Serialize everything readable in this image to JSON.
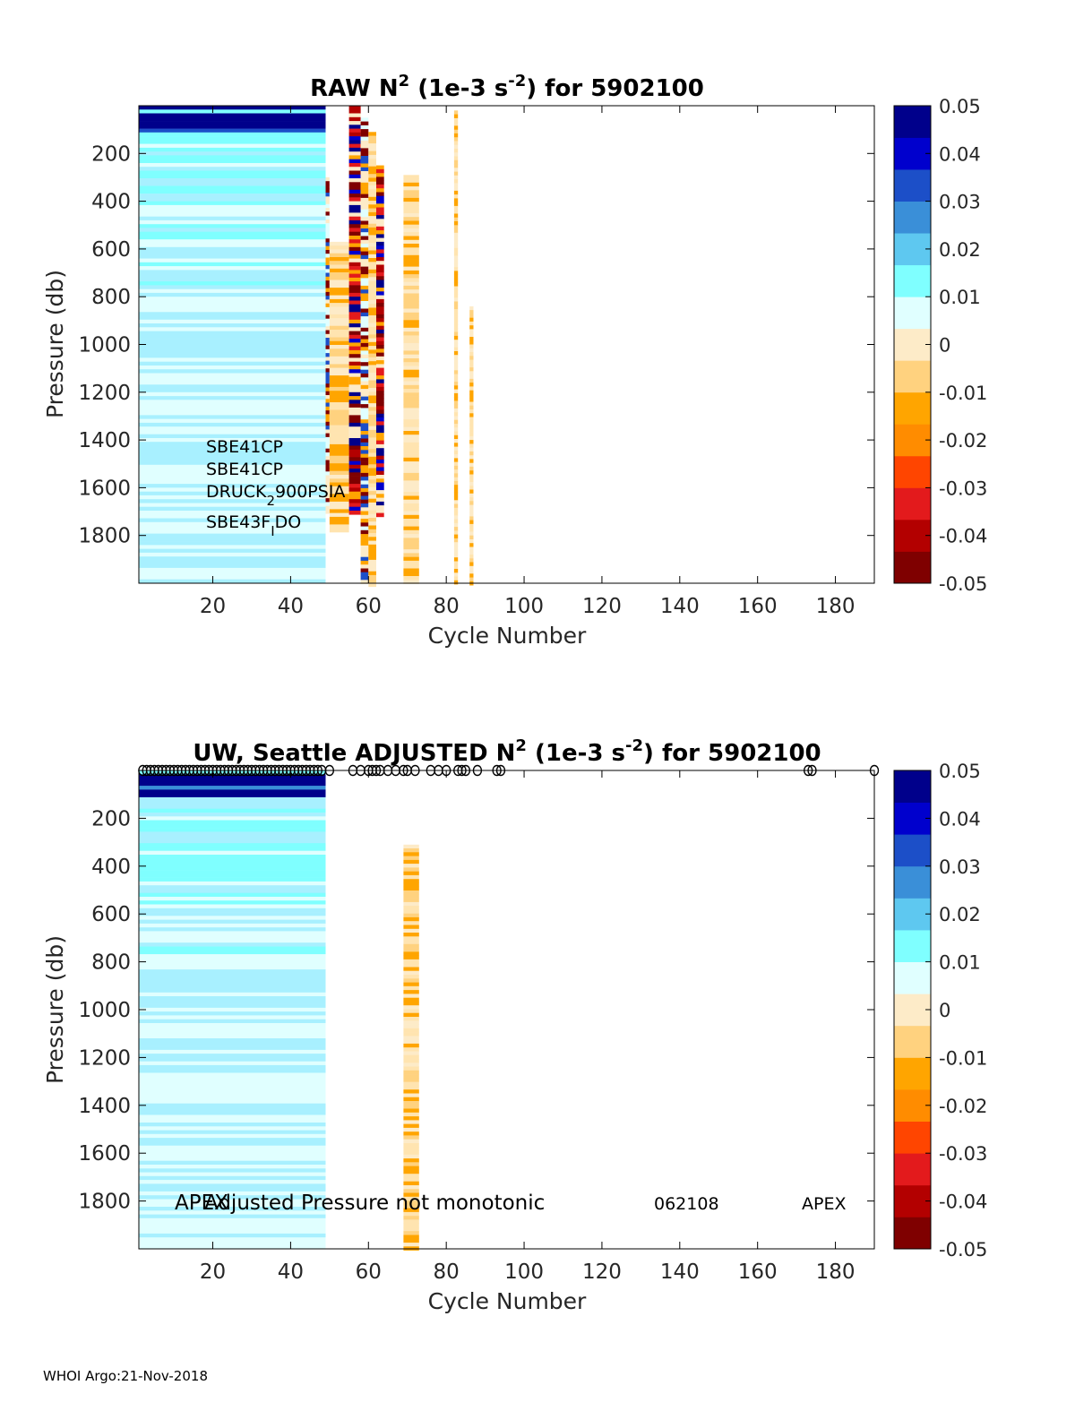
{
  "footer": "WHOI Argo:21-Nov-2018",
  "colorbar": {
    "ticks": [
      "0.05",
      "0.04",
      "0.03",
      "0.02",
      "0.01",
      "0",
      "-0.01",
      "-0.02",
      "-0.03",
      "-0.04",
      "-0.05"
    ],
    "colors": [
      "#7f0000",
      "#b30000",
      "#e31a1c",
      "#ff4500",
      "#ff8c00",
      "#ffa500",
      "#ffd27f",
      "#fdebc8",
      "#e0ffff",
      "#7fffff",
      "#5ec8f0",
      "#3a8fd8",
      "#1c4fc8",
      "#0000cd",
      "#00008b"
    ]
  },
  "chart_data": [
    {
      "type": "heatmap",
      "title": {
        "main": "RAW N",
        "sup1": "2",
        "mid": " (1e-3 s",
        "sup2": "-2",
        "end": ") for 5902100"
      },
      "xlabel": "Cycle Number",
      "ylabel": "Pressure (db)",
      "xlim": [
        1,
        190
      ],
      "ylim": [
        0,
        2000
      ],
      "clim": [
        -0.05,
        0.05
      ],
      "xticks": [
        "20",
        "40",
        "60",
        "80",
        "100",
        "120",
        "140",
        "160",
        "180"
      ],
      "yticks": [
        "200",
        "400",
        "600",
        "800",
        "1000",
        "1200",
        "1400",
        "1600",
        "1800"
      ],
      "sensors": [
        "SBE41CP",
        "SBE41CP",
        "DRUCK",
        "2",
        "900PSIA",
        "SBE43F",
        "I",
        "DO"
      ],
      "profiles": [
        {
          "cycles": [
            1,
            49
          ],
          "p_range": [
            0,
            2000
          ],
          "pattern": "positive"
        },
        {
          "cycles": [
            49,
            50
          ],
          "p_range": [
            300,
            1700
          ],
          "pattern": "mixed"
        },
        {
          "cycles": [
            50,
            55
          ],
          "p_range": [
            570,
            1780
          ],
          "pattern": "negative"
        },
        {
          "cycles": [
            55,
            58
          ],
          "p_range": [
            0,
            1700
          ],
          "pattern": "strong"
        },
        {
          "cycles": [
            58,
            60
          ],
          "p_range": [
            50,
            2000
          ],
          "pattern": "mixed"
        },
        {
          "cycles": [
            60,
            62
          ],
          "p_range": [
            110,
            2000
          ],
          "pattern": "negative"
        },
        {
          "cycles": [
            62,
            64
          ],
          "p_range": [
            250,
            1720
          ],
          "pattern": "strong"
        },
        {
          "cycles": [
            69,
            73
          ],
          "p_range": [
            290,
            2000
          ],
          "pattern": "negative"
        },
        {
          "cycles": [
            82,
            83
          ],
          "p_range": [
            20,
            2000
          ],
          "pattern": "negative"
        },
        {
          "cycles": [
            86,
            87
          ],
          "p_range": [
            840,
            2000
          ],
          "pattern": "negative"
        }
      ]
    },
    {
      "type": "heatmap",
      "title": {
        "main": "UW, Seattle  ADJUSTED N",
        "sup1": "2",
        "mid": " (1e-3 s",
        "sup2": "-2",
        "end": ") for 5902100"
      },
      "xlabel": "Cycle Number",
      "ylabel": "Pressure (db)",
      "xlim": [
        1,
        190
      ],
      "ylim": [
        0,
        2000
      ],
      "clim": [
        -0.05,
        0.05
      ],
      "xticks": [
        "20",
        "40",
        "60",
        "80",
        "100",
        "120",
        "140",
        "160",
        "180"
      ],
      "yticks": [
        "200",
        "400",
        "600",
        "800",
        "1000",
        "1200",
        "1400",
        "1600",
        "1800"
      ],
      "flag_cycles": [
        2,
        3,
        4,
        5,
        6,
        7,
        8,
        9,
        10,
        11,
        12,
        13,
        14,
        15,
        16,
        17,
        18,
        19,
        20,
        21,
        22,
        23,
        24,
        25,
        26,
        27,
        28,
        29,
        30,
        31,
        32,
        33,
        34,
        35,
        36,
        37,
        38,
        39,
        40,
        41,
        42,
        43,
        44,
        45,
        46,
        47,
        48,
        50,
        56,
        58,
        60,
        61,
        62,
        63,
        65,
        67,
        69,
        70,
        72,
        76,
        78,
        80,
        83,
        84,
        85,
        88,
        93,
        94,
        173,
        174,
        190
      ],
      "flag_marker": "o",
      "annotations": [
        "APEX",
        "Adjusted Pressure not monotonic",
        "062108",
        "APEX"
      ],
      "profiles": [
        {
          "cycles": [
            1,
            49
          ],
          "p_range": [
            0,
            2000
          ],
          "pattern": "positive"
        },
        {
          "cycles": [
            69,
            73
          ],
          "p_range": [
            310,
            2000
          ],
          "pattern": "negative"
        }
      ]
    }
  ]
}
